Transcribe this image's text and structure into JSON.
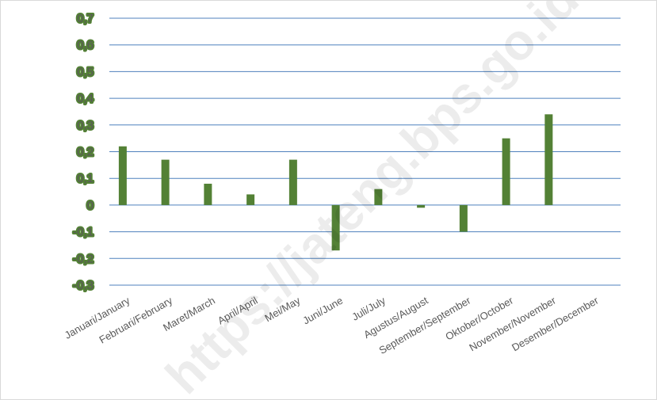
{
  "chart_data": {
    "type": "bar",
    "title": "",
    "xlabel": "",
    "ylabel": "",
    "categories": [
      "Januari/January",
      "Februari/February",
      "Maret/March",
      "April/April",
      "Mei/May",
      "Juni/June",
      "Juli/July",
      "Agustus/August",
      "September/September",
      "Oktober/October",
      "November/November",
      "Desember/December"
    ],
    "values": [
      0.22,
      0.17,
      0.08,
      0.04,
      0.17,
      -0.17,
      0.06,
      -0.01,
      -0.1,
      0.25,
      0.34,
      null
    ],
    "ylim": [
      -0.3,
      0.7
    ],
    "yticks": [
      "0,7",
      "0,6",
      "0,5",
      "0,4",
      "0,3",
      "0,2",
      "0,1",
      "0",
      "-0,1",
      "-0,2",
      "-0,3"
    ],
    "ytick_values": [
      0.7,
      0.6,
      0.5,
      0.4,
      0.3,
      0.2,
      0.1,
      0,
      -0.1,
      -0.2,
      -0.3
    ],
    "grid": true,
    "legend": "none",
    "colors": {
      "bar": "#538135",
      "grid": "#4f81bd",
      "tick_text": "#595959"
    }
  },
  "watermark": "https://jateng.bps.go.id"
}
